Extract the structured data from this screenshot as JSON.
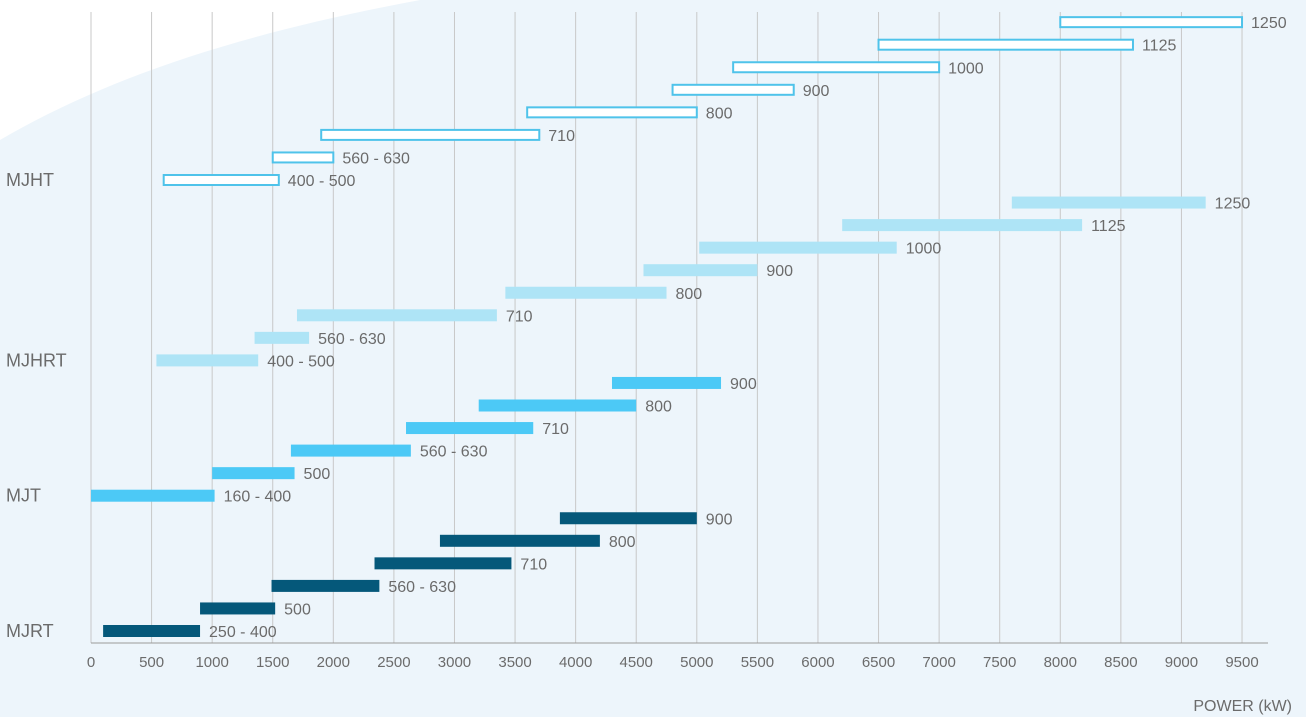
{
  "chart_data": {
    "type": "bar",
    "orientation": "horizontal-range",
    "xlabel": "POWER (kW)",
    "xlim": [
      0,
      9700
    ],
    "x_ticks": [
      0,
      500,
      1000,
      1500,
      2000,
      2500,
      3000,
      3500,
      4000,
      4500,
      5000,
      5500,
      6000,
      6500,
      7000,
      7500,
      8000,
      8500,
      9000,
      9500
    ],
    "grid": "vertical",
    "colors": {
      "MJHT": "#4fc3ea",
      "MJHRT": "#aee4f6",
      "MJT": "#4cc9f6",
      "MJRT": "#05587a",
      "grid": "#c8c8c8",
      "text": "#6b6b6b",
      "background_curve": "#edf5fb"
    },
    "series": [
      {
        "name": "MJHT",
        "style": "outline",
        "bars": [
          {
            "label": "400 - 500",
            "start": 600,
            "end": 1550
          },
          {
            "label": "560 - 630",
            "start": 1500,
            "end": 2000
          },
          {
            "label": "710",
            "start": 1900,
            "end": 3700
          },
          {
            "label": "800",
            "start": 3600,
            "end": 5000
          },
          {
            "label": "900",
            "start": 4800,
            "end": 5800
          },
          {
            "label": "1000",
            "start": 5300,
            "end": 7000
          },
          {
            "label": "1125",
            "start": 6500,
            "end": 8600
          },
          {
            "label": "1250",
            "start": 8000,
            "end": 9500
          }
        ]
      },
      {
        "name": "MJHRT",
        "style": "filled",
        "bars": [
          {
            "label": "400 - 500",
            "start": 540,
            "end": 1380
          },
          {
            "label": "560 - 630",
            "start": 1350,
            "end": 1800
          },
          {
            "label": "710",
            "start": 1700,
            "end": 3350
          },
          {
            "label": "800",
            "start": 3420,
            "end": 4750
          },
          {
            "label": "900",
            "start": 4560,
            "end": 5500
          },
          {
            "label": "1000",
            "start": 5020,
            "end": 6650
          },
          {
            "label": "1125",
            "start": 6200,
            "end": 8180
          },
          {
            "label": "1250",
            "start": 7600,
            "end": 9200
          }
        ]
      },
      {
        "name": "MJT",
        "style": "filled",
        "bars": [
          {
            "label": "160 - 400",
            "start": 0,
            "end": 1020
          },
          {
            "label": "500",
            "start": 1000,
            "end": 1680
          },
          {
            "label": "560 - 630",
            "start": 1650,
            "end": 2640
          },
          {
            "label": "710",
            "start": 2600,
            "end": 3650
          },
          {
            "label": "800",
            "start": 3200,
            "end": 4500
          },
          {
            "label": "900",
            "start": 4300,
            "end": 5200
          }
        ]
      },
      {
        "name": "MJRT",
        "style": "filled",
        "bars": [
          {
            "label": "250 - 400",
            "start": 100,
            "end": 900
          },
          {
            "label": "500",
            "start": 900,
            "end": 1520
          },
          {
            "label": "560 - 630",
            "start": 1490,
            "end": 2380
          },
          {
            "label": "710",
            "start": 2340,
            "end": 3470
          },
          {
            "label": "800",
            "start": 2880,
            "end": 4200
          },
          {
            "label": "900",
            "start": 3870,
            "end": 5000
          }
        ]
      }
    ]
  }
}
